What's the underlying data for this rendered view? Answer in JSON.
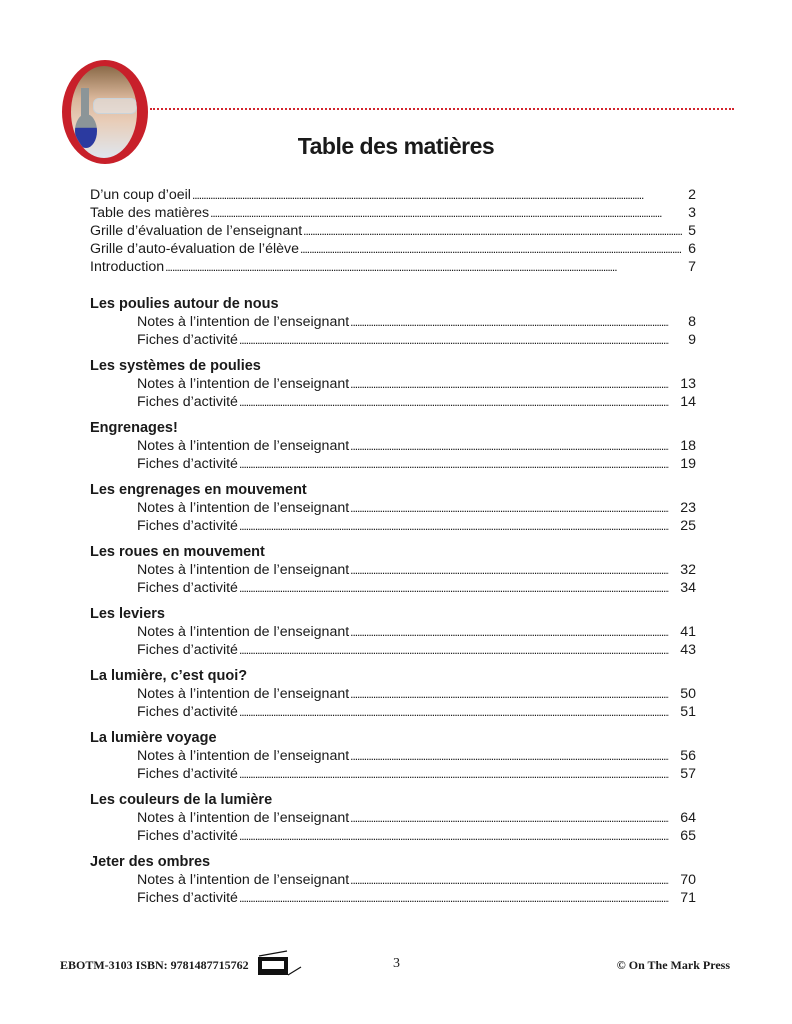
{
  "header": {
    "title": "Table des matières"
  },
  "intro_entries": [
    {
      "label": "D’un coup d’oeil",
      "page": "2"
    },
    {
      "label": "Table des matières",
      "page": "3"
    },
    {
      "label": "Grille d’évaluation de l’enseignant",
      "page": "5"
    },
    {
      "label": "Grille d’auto-évaluation de l’élève",
      "page": "6"
    },
    {
      "label": "Introduction",
      "page": "7"
    }
  ],
  "sections": [
    {
      "title": "Les poulies autour de nous",
      "items": [
        {
          "label": "Notes à l’intention de l’enseignant",
          "page": "8"
        },
        {
          "label": "Fiches d’activité",
          "page": "9"
        }
      ]
    },
    {
      "title": "Les systèmes de poulies",
      "items": [
        {
          "label": "Notes à l’intention de l’enseignant",
          "page": "13"
        },
        {
          "label": "Fiches d’activité",
          "page": "14"
        }
      ]
    },
    {
      "title": "Engrenages!",
      "items": [
        {
          "label": "Notes à l’intention de l’enseignant",
          "page": "18"
        },
        {
          "label": "Fiches d’activité",
          "page": "19"
        }
      ]
    },
    {
      "title": "Les engrenages en mouvement",
      "items": [
        {
          "label": "Notes à l’intention de l’enseignant",
          "page": "23"
        },
        {
          "label": "Fiches d’activité",
          "page": "25"
        }
      ]
    },
    {
      "title": "Les roues en mouvement",
      "items": [
        {
          "label": "Notes à l’intention de l’enseignant",
          "page": "32"
        },
        {
          "label": "Fiches d’activité",
          "page": "34"
        }
      ]
    },
    {
      "title": "Les leviers",
      "items": [
        {
          "label": "Notes à l’intention de l’enseignant",
          "page": "41"
        },
        {
          "label": "Fiches d’activité",
          "page": "43"
        }
      ]
    },
    {
      "title": "La lumière, c’est quoi?",
      "items": [
        {
          "label": "Notes à l’intention de l’enseignant",
          "page": "50"
        },
        {
          "label": "Fiches d’activité",
          "page": "51"
        }
      ]
    },
    {
      "title": "La lumière voyage",
      "items": [
        {
          "label": "Notes à l’intention de l’enseignant",
          "page": "56"
        },
        {
          "label": "Fiches d’activité",
          "page": "57"
        }
      ]
    },
    {
      "title": "Les couleurs de la lumière",
      "items": [
        {
          "label": "Notes à l’intention de l’enseignant",
          "page": "64"
        },
        {
          "label": "Fiches d’activité",
          "page": "65"
        }
      ]
    },
    {
      "title": "Jeter des ombres",
      "items": [
        {
          "label": "Notes à l’intention de l’enseignant",
          "page": "70"
        },
        {
          "label": "Fiches d’activité",
          "page": "71"
        }
      ]
    }
  ],
  "footer": {
    "code": "EBOTM-3103 ISBN: 9781487715762",
    "page_number": "3",
    "copyright": "© On The Mark Press",
    "icon": "fax-icon"
  },
  "colors": {
    "accent": "#c8202a"
  }
}
